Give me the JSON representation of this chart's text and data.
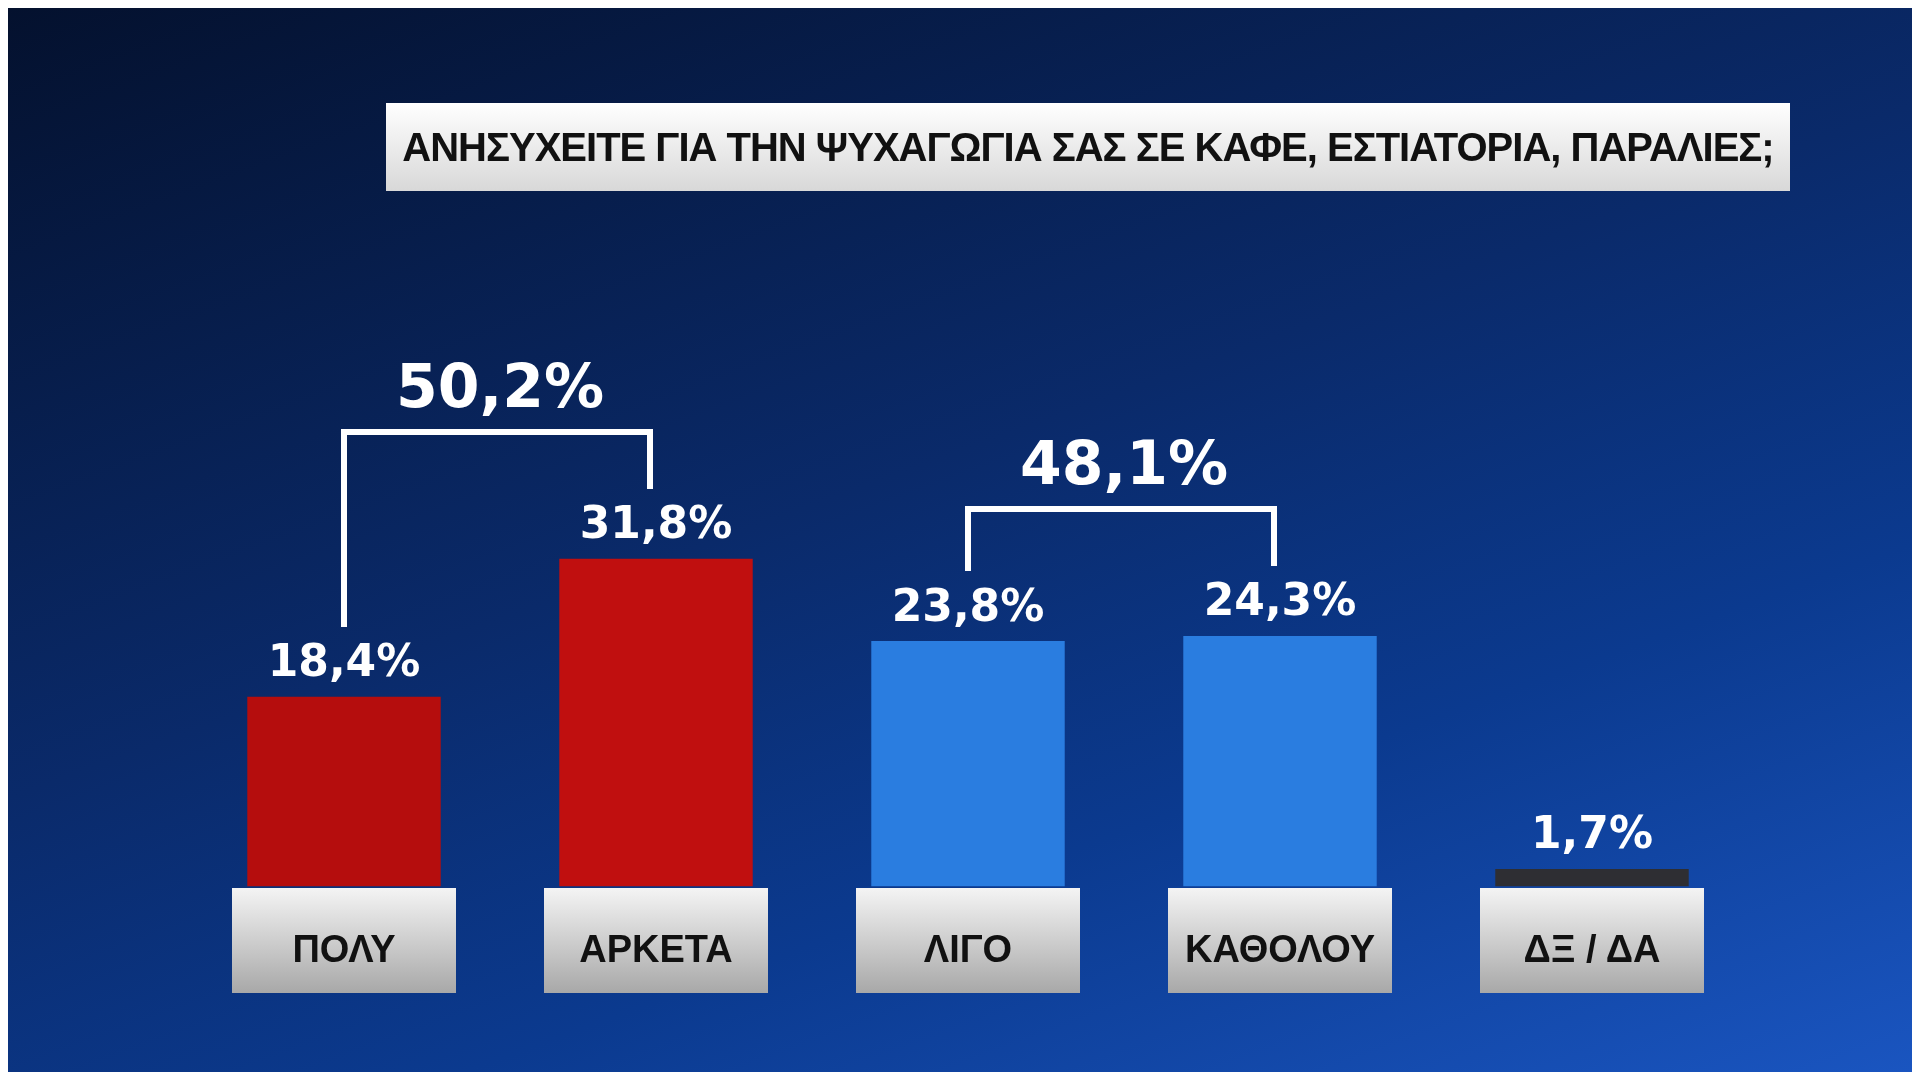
{
  "chart_data": {
    "type": "bar",
    "title": "ΑΝΗΣΥΧΕΙΤΕ ΓΙΑ ΤΗΝ ΨΥΧΑΓΩΓΙΑ ΣΑΣ ΣΕ ΚΑΦΕ, ΕΣΤΙΑΤΟΡΙΑ, ΠΑΡΑΛΙΕΣ;",
    "categories": [
      "ΠΟΛΥ",
      "ΑΡΚΕΤΑ",
      "ΛΙΓΟ",
      "ΚΑΘΟΛΟΥ",
      "ΔΞ / ΔΑ"
    ],
    "values": [
      18.4,
      31.8,
      23.8,
      24.3,
      1.7
    ],
    "value_labels": [
      "18,4%",
      "31,8%",
      "23,8%",
      "24,3%",
      "1,7%"
    ],
    "colors": [
      "#b50d0d",
      "#c00f0f",
      "#2a7de0",
      "#2a7de0",
      "#2e2e33"
    ],
    "annotations": [
      "50,2%",
      "48,1%"
    ],
    "grid": false,
    "legend": false
  }
}
